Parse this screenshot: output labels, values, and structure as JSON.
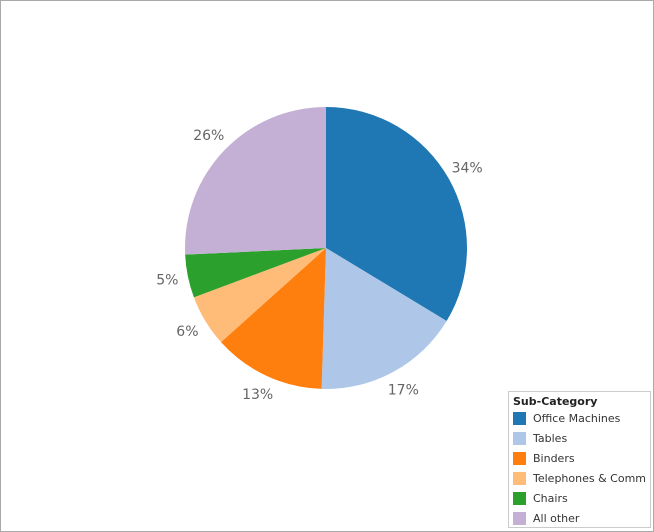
{
  "chart_data": {
    "type": "pie",
    "categories": [
      "Office Machines",
      "Tables",
      "Binders",
      "Telephones & Comm",
      "Chairs",
      "All other"
    ],
    "values": [
      34,
      17,
      13,
      6,
      5,
      26
    ],
    "value_labels": [
      "34%",
      "17%",
      "13%",
      "6%",
      "5%",
      "26%"
    ],
    "colors": [
      "#1f77b4",
      "#aec7e8",
      "#ff7f0e",
      "#ffbb78",
      "#2ca02c",
      "#c5b0d5"
    ],
    "legend_title": "Sub-Category",
    "legend_position": "lower right"
  }
}
